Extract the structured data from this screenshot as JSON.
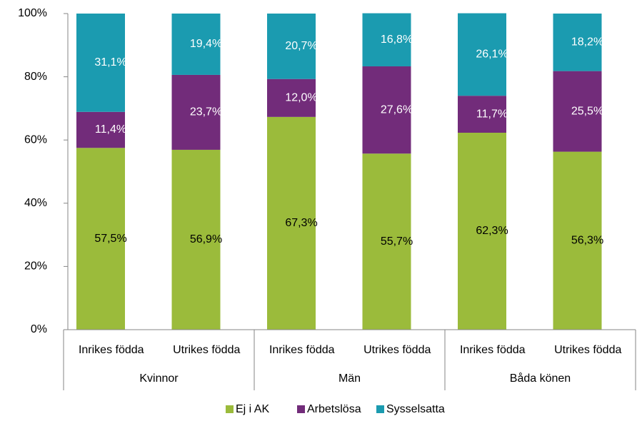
{
  "chart_data": {
    "type": "stacked_bar",
    "categories": [
      "Inrikes födda",
      "Utrikes födda",
      "Inrikes födda",
      "Utrikes födda",
      "Inrikes födda",
      "Utrikes födda"
    ],
    "groups": [
      "Kvinnor",
      "Män",
      "Båda könen"
    ],
    "series": [
      {
        "name": "Ej i AK",
        "color": "#9bbb3b",
        "values": [
          57.5,
          56.9,
          67.3,
          55.7,
          62.3,
          56.3
        ],
        "value_labels": [
          "57,5%",
          "56,9%",
          "67,3%",
          "55,7%",
          "62,3%",
          "56,3%"
        ]
      },
      {
        "name": "Arbetslösa",
        "color": "#722c7a",
        "values": [
          11.4,
          23.7,
          12.0,
          27.6,
          11.7,
          25.5
        ],
        "value_labels": [
          "11,4%",
          "23,7%",
          "12,0%",
          "27,6%",
          "11,7%",
          "25,5%"
        ]
      },
      {
        "name": "Sysselsatta",
        "color": "#1b9bb0",
        "values": [
          31.1,
          19.4,
          20.7,
          16.8,
          26.1,
          18.2
        ],
        "value_labels": [
          "31,1%",
          "19,4%",
          "20,7%",
          "16,8%",
          "26,1%",
          "18,2%"
        ]
      }
    ],
    "ylim": [
      0,
      100
    ],
    "yticks": [
      {
        "value": 0,
        "label": "0%"
      },
      {
        "value": 20,
        "label": "20%"
      },
      {
        "value": 40,
        "label": "40%"
      },
      {
        "value": 60,
        "label": "60%"
      },
      {
        "value": 80,
        "label": "80%"
      },
      {
        "value": 100,
        "label": "100%"
      }
    ],
    "legend": "bottom"
  }
}
